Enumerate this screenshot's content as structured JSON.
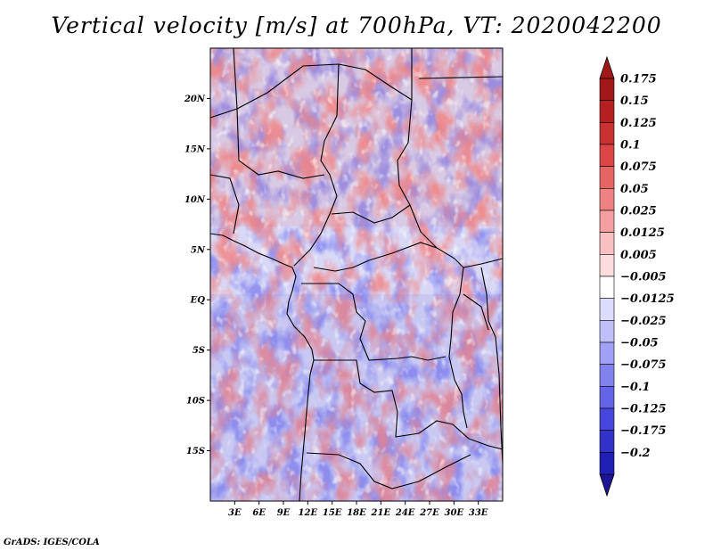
{
  "title": "Vertical velocity [m/s] at 700hPa, VT: 2020042200",
  "footer": "GrADS: IGES/COLA",
  "map": {
    "lon_range": [
      0,
      36
    ],
    "lat_range": [
      -20,
      25
    ],
    "lat_ticks": [
      {
        "value": 20,
        "label": "20N"
      },
      {
        "value": 15,
        "label": "15N"
      },
      {
        "value": 10,
        "label": "10N"
      },
      {
        "value": 5,
        "label": "5N"
      },
      {
        "value": 0,
        "label": "EQ"
      },
      {
        "value": -5,
        "label": "5S"
      },
      {
        "value": -10,
        "label": "10S"
      },
      {
        "value": -15,
        "label": "15S"
      }
    ],
    "lon_ticks": [
      {
        "value": 3,
        "label": "3E"
      },
      {
        "value": 6,
        "label": "6E"
      },
      {
        "value": 9,
        "label": "9E"
      },
      {
        "value": 12,
        "label": "12E"
      },
      {
        "value": 15,
        "label": "15E"
      },
      {
        "value": 18,
        "label": "18E"
      },
      {
        "value": 21,
        "label": "21E"
      },
      {
        "value": 24,
        "label": "24E"
      },
      {
        "value": 27,
        "label": "27E"
      },
      {
        "value": 30,
        "label": "30E"
      },
      {
        "value": 33,
        "label": "33E"
      }
    ]
  },
  "colorbar": {
    "levels": [
      {
        "label": "0.175",
        "color": "#a01818"
      },
      {
        "label": "0.15",
        "color": "#b42020"
      },
      {
        "label": "0.125",
        "color": "#c83232"
      },
      {
        "label": "0.1",
        "color": "#dc4646"
      },
      {
        "label": "0.075",
        "color": "#e66464"
      },
      {
        "label": "0.05",
        "color": "#ee8282"
      },
      {
        "label": "0.025",
        "color": "#f4a0a0"
      },
      {
        "label": "0.0125",
        "color": "#f8c0c0"
      },
      {
        "label": "0.005",
        "color": "#fcdcdc"
      },
      {
        "label": "−0.005",
        "color": "#ffffff"
      },
      {
        "label": "−0.0125",
        "color": "#dcdcfc"
      },
      {
        "label": "−0.025",
        "color": "#c0c0f8"
      },
      {
        "label": "−0.05",
        "color": "#a0a0f4"
      },
      {
        "label": "−0.075",
        "color": "#8282ee"
      },
      {
        "label": "−0.1",
        "color": "#6464e6"
      },
      {
        "label": "−0.125",
        "color": "#4646dc"
      },
      {
        "label": "−0.175",
        "color": "#3232c8"
      },
      {
        "label": "−0.2",
        "color": "#2020b4"
      }
    ],
    "top_arrow_color": "#a01818",
    "bottom_arrow_color": "#1e1496"
  }
}
